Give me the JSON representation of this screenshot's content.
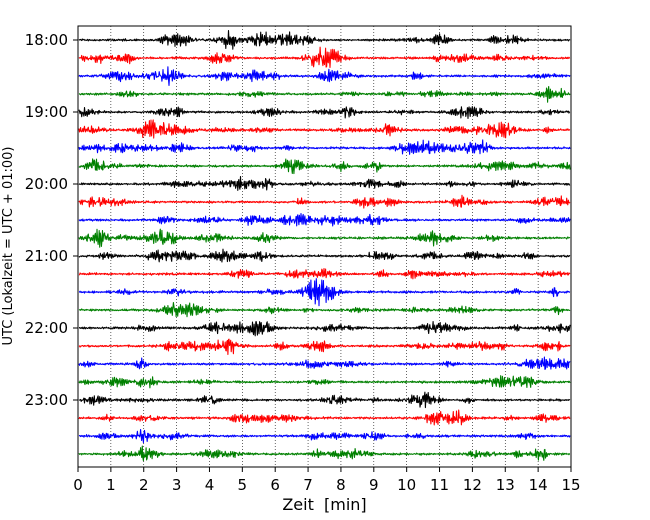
{
  "chart_data": {
    "type": "line",
    "title": "",
    "xlabel": "Zeit  [min]",
    "ylabel": "UTC (Lokalzeit = UTC + 01:00)",
    "xlim": [
      0,
      15
    ],
    "x_ticks": [
      "0",
      "1",
      "2",
      "3",
      "4",
      "5",
      "6",
      "7",
      "8",
      "9",
      "10",
      "11",
      "12",
      "13",
      "14",
      "15"
    ],
    "y_ticks": [
      "18:00",
      "19:00",
      "20:00",
      "21:00",
      "22:00",
      "23:00"
    ],
    "grid": "vertical-dotted",
    "trace_interval_min": 15,
    "trace_start": "18:00",
    "trace_count": 24,
    "series_colors": [
      "#000000",
      "#ff0000",
      "#0000ff",
      "#008000"
    ]
  }
}
